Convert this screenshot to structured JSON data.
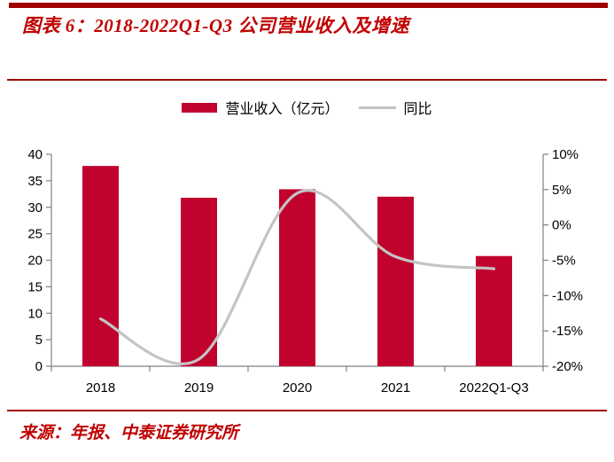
{
  "header": {
    "title": "图表 6：2018-2022Q1-Q3 公司营业收入及增速"
  },
  "footer": {
    "source": "来源：年报、中泰证券研究所"
  },
  "colors": {
    "rule_red": "#a00000",
    "title_red": "#c00000",
    "bar_red": "#c1022e",
    "line_gray": "#c4c4c4",
    "axis_gray": "#808080",
    "axis_text": "#000000"
  },
  "chart_data": {
    "type": "combo",
    "title": "2018-2022Q1-Q3 公司营业收入及增速",
    "categories": [
      "2018",
      "2019",
      "2020",
      "2021",
      "2022Q1-Q3"
    ],
    "series": [
      {
        "name": "营业收入（亿元）",
        "type": "bar",
        "axis": "left",
        "color": "#c1022e",
        "values": [
          37.8,
          31.8,
          33.4,
          32.0,
          20.8
        ]
      },
      {
        "name": "同比",
        "type": "line",
        "axis": "right",
        "color": "#c4c4c4",
        "values": [
          -13.3,
          -19.0,
          4.5,
          -4.5,
          -6.2
        ]
      }
    ],
    "left_axis": {
      "min": 0,
      "max": 40,
      "step": 5,
      "suffix": ""
    },
    "right_axis": {
      "min": -20,
      "max": 10,
      "step": 5,
      "suffix": "%"
    },
    "legend_position": "top-center",
    "grid": false
  }
}
